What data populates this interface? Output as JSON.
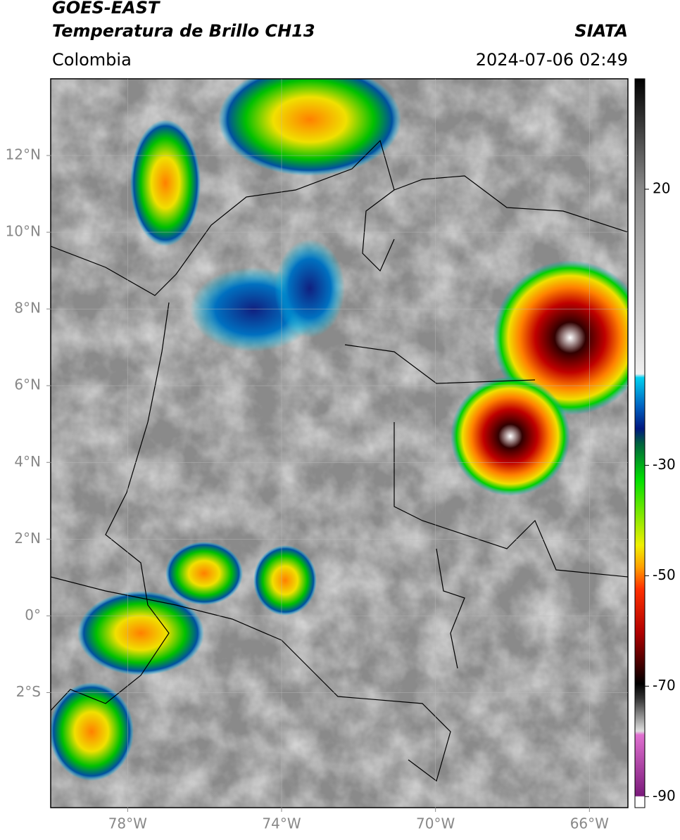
{
  "header": {
    "title": "GOES-EAST",
    "subtitle": "Temperatura de Brillo CH13",
    "source": "SIATA",
    "region": "Colombia",
    "timestamp": "2024-07-06 02:49"
  },
  "map": {
    "xlim": [
      -80,
      -65
    ],
    "ylim": [
      -5,
      14
    ],
    "xticks": [
      {
        "value": -78,
        "label": "78°W"
      },
      {
        "value": -74,
        "label": "74°W"
      },
      {
        "value": -70,
        "label": "70°W"
      },
      {
        "value": -66,
        "label": "66°W"
      }
    ],
    "yticks": [
      {
        "value": 12,
        "label": "12°N"
      },
      {
        "value": 10,
        "label": "10°N"
      },
      {
        "value": 8,
        "label": "8°N"
      },
      {
        "value": 6,
        "label": "6°N"
      },
      {
        "value": 4,
        "label": "4°N"
      },
      {
        "value": 2,
        "label": "2°N"
      },
      {
        "value": 0,
        "label": "0°"
      },
      {
        "value": -2,
        "label": "2°S"
      }
    ],
    "grid": true
  },
  "colorbar": {
    "lim": [
      -92,
      40
    ],
    "ticks": [
      20,
      -30,
      -50,
      -70,
      -90
    ]
  }
}
